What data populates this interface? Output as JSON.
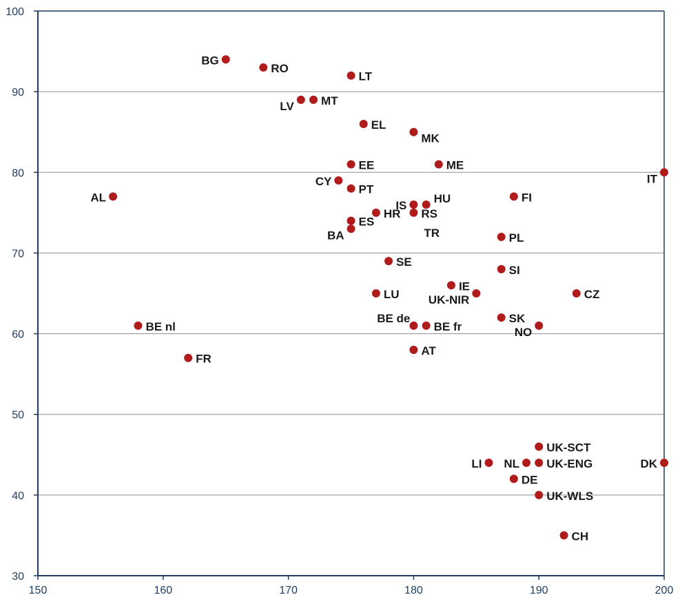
{
  "chart_data": {
    "type": "scatter",
    "title": "",
    "xlabel": "",
    "ylabel": "",
    "xlim": [
      150,
      200
    ],
    "ylim": [
      30,
      100
    ],
    "x_ticks": [
      "150",
      "160",
      "170",
      "180",
      "190",
      "200"
    ],
    "y_ticks": [
      "30",
      "40",
      "50",
      "60",
      "70",
      "80",
      "90",
      "100"
    ],
    "grid": "horizontal",
    "colors": {
      "point": "#b01c1c",
      "axis": "#1f3b5f",
      "grid": "#8c8c8c"
    },
    "points": [
      {
        "label": "BG",
        "x": 165,
        "y": 94,
        "pos": "left"
      },
      {
        "label": "RO",
        "x": 168,
        "y": 93,
        "pos": "right"
      },
      {
        "label": "LT",
        "x": 175,
        "y": 92,
        "pos": "right"
      },
      {
        "label": "LV",
        "x": 171,
        "y": 89,
        "pos": "left-below"
      },
      {
        "label": "MT",
        "x": 172,
        "y": 89,
        "pos": "right"
      },
      {
        "label": "EL",
        "x": 176,
        "y": 86,
        "pos": "right"
      },
      {
        "label": "MK",
        "x": 180,
        "y": 85,
        "pos": "right-below"
      },
      {
        "label": "EE",
        "x": 175,
        "y": 81,
        "pos": "right"
      },
      {
        "label": "ME",
        "x": 182,
        "y": 81,
        "pos": "right"
      },
      {
        "label": "IT",
        "x": 200,
        "y": 80,
        "pos": "left-below"
      },
      {
        "label": "CY",
        "x": 174,
        "y": 79,
        "pos": "left"
      },
      {
        "label": "PT",
        "x": 175,
        "y": 78,
        "pos": "right"
      },
      {
        "label": "AL",
        "x": 156,
        "y": 77,
        "pos": "left"
      },
      {
        "label": "FI",
        "x": 188,
        "y": 77,
        "pos": "right"
      },
      {
        "label": "IS",
        "x": 180,
        "y": 76,
        "pos": "left"
      },
      {
        "label": "HU",
        "x": 181,
        "y": 76,
        "pos": "right-above"
      },
      {
        "label": "HR",
        "x": 177,
        "y": 75,
        "pos": "right"
      },
      {
        "label": "RS",
        "x": 180,
        "y": 75,
        "pos": "right"
      },
      {
        "label": "ES",
        "x": 175,
        "y": 74,
        "pos": "right"
      },
      {
        "label": "BA",
        "x": 175,
        "y": 73,
        "pos": "left-below"
      },
      {
        "label": "TR",
        "x": 180,
        "y": 75,
        "pos": "right-far-below"
      },
      {
        "label": "PL",
        "x": 187,
        "y": 72,
        "pos": "right"
      },
      {
        "label": "SE",
        "x": 178,
        "y": 69,
        "pos": "right"
      },
      {
        "label": "SI",
        "x": 187,
        "y": 68,
        "pos": "right"
      },
      {
        "label": "IE",
        "x": 183,
        "y": 66,
        "pos": "right"
      },
      {
        "label": "UK-NIR",
        "x": 185,
        "y": 65,
        "pos": "left-below"
      },
      {
        "label": "LU",
        "x": 177,
        "y": 65,
        "pos": "right"
      },
      {
        "label": "CZ",
        "x": 193,
        "y": 65,
        "pos": "right"
      },
      {
        "label": "SK",
        "x": 187,
        "y": 62,
        "pos": "right"
      },
      {
        "label": "BE de",
        "x": 180,
        "y": 61,
        "pos": "left-above"
      },
      {
        "label": "BE fr",
        "x": 181,
        "y": 61,
        "pos": "right"
      },
      {
        "label": "BE nl",
        "x": 158,
        "y": 61,
        "pos": "right"
      },
      {
        "label": "NO",
        "x": 190,
        "y": 61,
        "pos": "left-below"
      },
      {
        "label": "AT",
        "x": 180,
        "y": 58,
        "pos": "right"
      },
      {
        "label": "FR",
        "x": 162,
        "y": 57,
        "pos": "right"
      },
      {
        "label": "UK-SCT",
        "x": 190,
        "y": 46,
        "pos": "right"
      },
      {
        "label": "UK-ENG",
        "x": 190,
        "y": 44,
        "pos": "right"
      },
      {
        "label": "NL",
        "x": 189,
        "y": 44,
        "pos": "left"
      },
      {
        "label": "LI",
        "x": 186,
        "y": 44,
        "pos": "left"
      },
      {
        "label": "DK",
        "x": 200,
        "y": 44,
        "pos": "left"
      },
      {
        "label": "DE",
        "x": 188,
        "y": 42,
        "pos": "right"
      },
      {
        "label": "UK-WLS",
        "x": 190,
        "y": 40,
        "pos": "right"
      },
      {
        "label": "CH",
        "x": 192,
        "y": 35,
        "pos": "right"
      }
    ]
  }
}
